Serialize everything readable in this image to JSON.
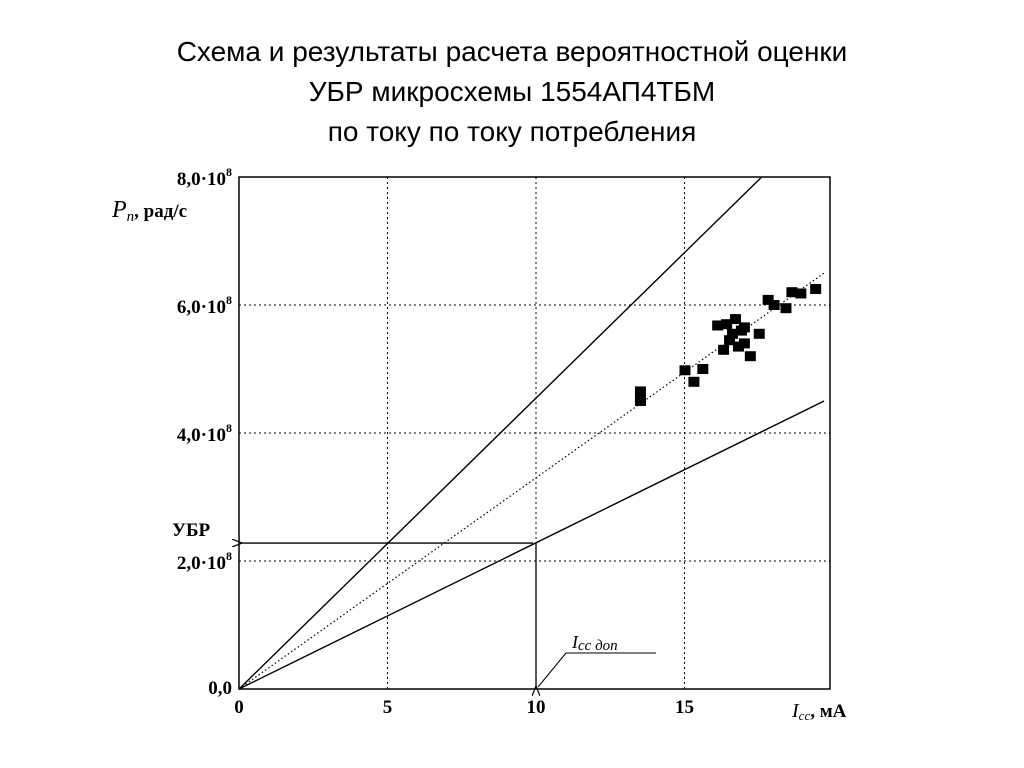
{
  "title": {
    "line1": "Схема и результаты расчета вероятностной оценки",
    "line2": "УБР микросхемы 1554АП4ТБМ",
    "line3": "по току по току потребления"
  },
  "chart_data": {
    "type": "scatter",
    "xlim": [
      0,
      20
    ],
    "ylim": [
      0,
      8.0
    ],
    "y_multiplier_label": "·10",
    "y_exponent": "8",
    "x_ticks": [
      {
        "value": 0,
        "label": "0"
      },
      {
        "value": 5,
        "label": "5"
      },
      {
        "value": 10,
        "label": "10"
      },
      {
        "value": 15,
        "label": "15"
      }
    ],
    "y_ticks": [
      {
        "value": 0,
        "label": "0,0",
        "sup": ""
      },
      {
        "value": 2.0,
        "label": "2,0·10",
        "sup": "8"
      },
      {
        "value": 4.0,
        "label": "4,0·10",
        "sup": "8"
      },
      {
        "value": 6.0,
        "label": "6,0·10",
        "sup": "8"
      },
      {
        "value": 8.0,
        "label": "8,0·10",
        "sup": "8"
      }
    ],
    "ylabel": {
      "symbol": "P",
      "sub": "п",
      "unit": ", рад/с"
    },
    "xlabel": {
      "symbol": "I",
      "sub": "cc",
      "unit": ", мА"
    },
    "ubr_label": "УБР",
    "icc_label": "I",
    "icc_sub": "cc доп",
    "grid": "dotted",
    "ubr_value": 2.28,
    "icc_value": 10,
    "lines": [
      {
        "style": "solid",
        "x": [
          0,
          17.6
        ],
        "y": [
          0,
          8.0
        ]
      },
      {
        "style": "dotted",
        "x": [
          0,
          19.7
        ],
        "y": [
          0,
          6.5
        ]
      },
      {
        "style": "solid",
        "x": [
          0,
          19.7
        ],
        "y": [
          0,
          4.5
        ]
      }
    ],
    "points": [
      {
        "x": 13.5,
        "y": 4.65
      },
      {
        "x": 13.5,
        "y": 4.5
      },
      {
        "x": 15.0,
        "y": 4.98
      },
      {
        "x": 15.3,
        "y": 4.8
      },
      {
        "x": 15.6,
        "y": 5.0
      },
      {
        "x": 16.1,
        "y": 5.68
      },
      {
        "x": 16.3,
        "y": 5.3
      },
      {
        "x": 16.4,
        "y": 5.7
      },
      {
        "x": 16.5,
        "y": 5.45
      },
      {
        "x": 16.6,
        "y": 5.55
      },
      {
        "x": 16.7,
        "y": 5.78
      },
      {
        "x": 16.8,
        "y": 5.35
      },
      {
        "x": 16.9,
        "y": 5.6
      },
      {
        "x": 17.0,
        "y": 5.65
      },
      {
        "x": 17.0,
        "y": 5.4
      },
      {
        "x": 17.2,
        "y": 5.2
      },
      {
        "x": 17.5,
        "y": 5.55
      },
      {
        "x": 17.8,
        "y": 6.08
      },
      {
        "x": 18.0,
        "y": 6.0
      },
      {
        "x": 18.4,
        "y": 5.95
      },
      {
        "x": 18.6,
        "y": 6.2
      },
      {
        "x": 18.9,
        "y": 6.18
      },
      {
        "x": 19.4,
        "y": 6.25
      }
    ]
  }
}
